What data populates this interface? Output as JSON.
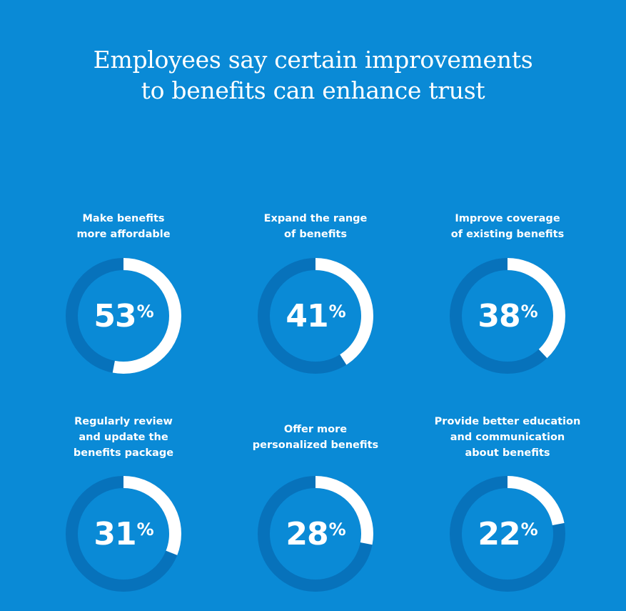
{
  "title": [
    "Employees say certain improvements",
    "to benefits can enhance trust"
  ],
  "colors": {
    "background": "#0a8ad6",
    "track": "#0772bb",
    "fill": "#ffffff"
  },
  "chart_data": {
    "type": "donut",
    "title": "Employees say certain improvements to benefits can enhance trust",
    "unit": "%",
    "items": [
      {
        "label": [
          "Make benefits",
          "more affordable"
        ],
        "value": 53
      },
      {
        "label": [
          "Expand the range",
          "of benefits"
        ],
        "value": 41
      },
      {
        "label": [
          "Improve coverage",
          "of existing benefits"
        ],
        "value": 38
      },
      {
        "label": [
          "Regularly review",
          "and update the",
          "benefits package"
        ],
        "value": 31
      },
      {
        "label": [
          "Offer more",
          "personalized benefits"
        ],
        "value": 28
      },
      {
        "label": [
          "Provide better education",
          "and communication",
          "about benefits"
        ],
        "value": 22
      }
    ]
  }
}
